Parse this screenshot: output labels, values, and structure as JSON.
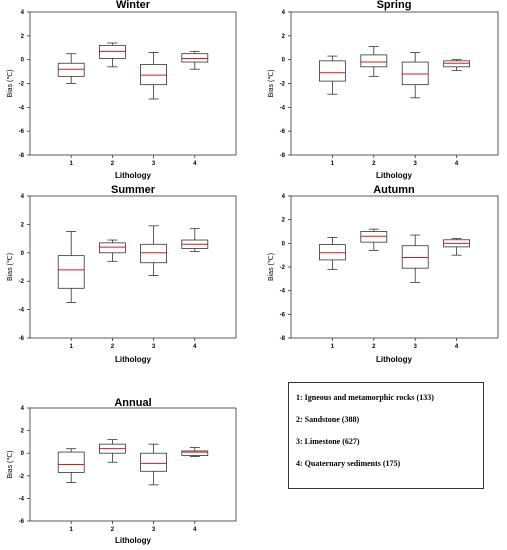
{
  "chart_data": [
    {
      "type": "box",
      "title": "Winter",
      "xlabel": "Lithology",
      "ylabel": "Bias (℃)",
      "ylim": [
        -8,
        4
      ],
      "yticks": [
        4,
        2,
        0,
        -2,
        -4,
        -6,
        -8
      ],
      "categories": [
        "1",
        "2",
        "3",
        "4"
      ],
      "boxes": [
        {
          "whisker_low": -2.0,
          "q1": -1.4,
          "median": -0.8,
          "q3": -0.3,
          "whisker_high": 0.5
        },
        {
          "whisker_low": -0.6,
          "q1": 0.1,
          "median": 0.7,
          "q3": 1.2,
          "whisker_high": 1.4
        },
        {
          "whisker_low": -3.3,
          "q1": -2.1,
          "median": -1.3,
          "q3": -0.4,
          "whisker_high": 0.6
        },
        {
          "whisker_low": -0.8,
          "q1": -0.2,
          "median": 0.1,
          "q3": 0.5,
          "whisker_high": 0.7
        }
      ],
      "colors": {
        "median": "#d7191c",
        "box": "#333333"
      }
    },
    {
      "type": "box",
      "title": "Spring",
      "xlabel": "Lithology",
      "ylabel": "Bias (℃)",
      "ylim": [
        -8,
        4
      ],
      "yticks": [
        4,
        2,
        0,
        -2,
        -4,
        -6,
        -8
      ],
      "categories": [
        "1",
        "2",
        "3",
        "4"
      ],
      "boxes": [
        {
          "whisker_low": -2.9,
          "q1": -1.8,
          "median": -1.1,
          "q3": -0.1,
          "whisker_high": 0.3
        },
        {
          "whisker_low": -1.4,
          "q1": -0.6,
          "median": -0.2,
          "q3": 0.4,
          "whisker_high": 1.1
        },
        {
          "whisker_low": -3.2,
          "q1": -2.1,
          "median": -1.2,
          "q3": -0.2,
          "whisker_high": 0.6
        },
        {
          "whisker_low": -0.9,
          "q1": -0.6,
          "median": -0.3,
          "q3": -0.1,
          "whisker_high": 0.0
        }
      ],
      "colors": {
        "median": "#d7191c",
        "box": "#333333"
      }
    },
    {
      "type": "box",
      "title": "Summer",
      "xlabel": "Lithology",
      "ylabel": "Bias (℃)",
      "ylim": [
        -6,
        4
      ],
      "yticks": [
        4,
        2,
        0,
        -2,
        -4,
        -6
      ],
      "categories": [
        "1",
        "2",
        "3",
        "4"
      ],
      "boxes": [
        {
          "whisker_low": -3.5,
          "q1": -2.5,
          "median": -1.2,
          "q3": -0.2,
          "whisker_high": 1.5
        },
        {
          "whisker_low": -0.6,
          "q1": 0.0,
          "median": 0.4,
          "q3": 0.7,
          "whisker_high": 0.9
        },
        {
          "whisker_low": -1.6,
          "q1": -0.7,
          "median": 0.0,
          "q3": 0.6,
          "whisker_high": 1.9
        },
        {
          "whisker_low": 0.1,
          "q1": 0.3,
          "median": 0.6,
          "q3": 0.9,
          "whisker_high": 1.7
        }
      ],
      "colors": {
        "median": "#d7191c",
        "box": "#333333"
      }
    },
    {
      "type": "box",
      "title": "Autumn",
      "xlabel": "Lithology",
      "ylabel": "Bias (℃)",
      "ylim": [
        -8,
        4
      ],
      "yticks": [
        4,
        2,
        0,
        -2,
        -4,
        -6,
        -8
      ],
      "categories": [
        "1",
        "2",
        "3",
        "4"
      ],
      "boxes": [
        {
          "whisker_low": -2.2,
          "q1": -1.4,
          "median": -0.8,
          "q3": -0.1,
          "whisker_high": 0.5
        },
        {
          "whisker_low": -0.6,
          "q1": 0.1,
          "median": 0.6,
          "q3": 1.0,
          "whisker_high": 1.2
        },
        {
          "whisker_low": -3.3,
          "q1": -2.1,
          "median": -1.2,
          "q3": -0.2,
          "whisker_high": 0.7
        },
        {
          "whisker_low": -1.0,
          "q1": -0.3,
          "median": 0.0,
          "q3": 0.3,
          "whisker_high": 0.4
        }
      ],
      "colors": {
        "median": "#d7191c",
        "box": "#333333"
      }
    },
    {
      "type": "box",
      "title": "Annual",
      "xlabel": "Lithology",
      "ylabel": "Bias (℃)",
      "ylim": [
        -6,
        4
      ],
      "yticks": [
        4,
        2,
        0,
        -2,
        -4,
        -6
      ],
      "categories": [
        "1",
        "2",
        "3",
        "4"
      ],
      "boxes": [
        {
          "whisker_low": -2.6,
          "q1": -1.7,
          "median": -1.0,
          "q3": 0.1,
          "whisker_high": 0.4
        },
        {
          "whisker_low": -0.8,
          "q1": 0.0,
          "median": 0.4,
          "q3": 0.8,
          "whisker_high": 1.2
        },
        {
          "whisker_low": -2.8,
          "q1": -1.6,
          "median": -0.9,
          "q3": 0.0,
          "whisker_high": 0.8
        },
        {
          "whisker_low": -0.3,
          "q1": -0.2,
          "median": 0.1,
          "q3": 0.2,
          "whisker_high": 0.5
        }
      ],
      "colors": {
        "median": "#d7191c",
        "box": "#333333"
      }
    }
  ],
  "legend": {
    "items": [
      "1: Igneous and metamorphic rocks (133)",
      "2: Sandstone (388)",
      "3: Limestone (627)",
      "4: Quaternary sediments (175)"
    ]
  }
}
